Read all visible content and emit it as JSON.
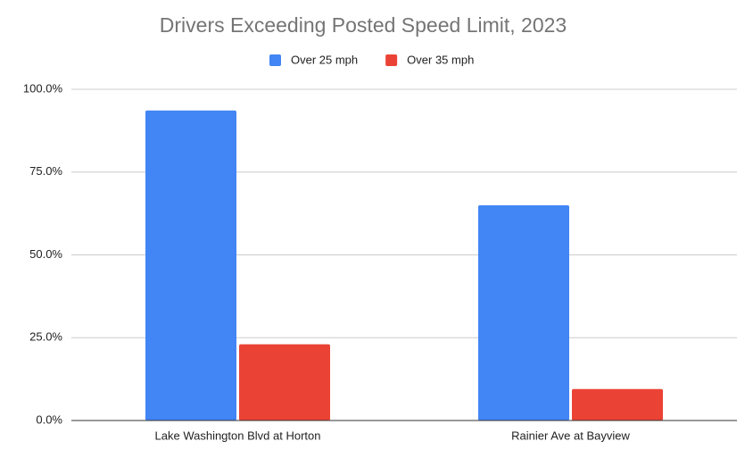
{
  "chart_data": {
    "type": "bar",
    "title": "Drivers Exceeding Posted Speed Limit, 2023",
    "categories": [
      "Lake Washington Blvd at Horton",
      "Rainier Ave at Bayview"
    ],
    "series": [
      {
        "name": "Over 25 mph",
        "color": "#4285f4",
        "values": [
          93.6,
          65.0
        ]
      },
      {
        "name": "Over 35 mph",
        "color": "#ea4335",
        "values": [
          23.0,
          9.5
        ]
      }
    ],
    "ylim": [
      0,
      100
    ],
    "yticks": [
      {
        "value": 0,
        "label": "0.0%"
      },
      {
        "value": 25,
        "label": "25.0%"
      },
      {
        "value": 50,
        "label": "50.0%"
      },
      {
        "value": 75,
        "label": "75.0%"
      },
      {
        "value": 100,
        "label": "100.0%"
      }
    ],
    "grid": true,
    "legend": "top"
  }
}
